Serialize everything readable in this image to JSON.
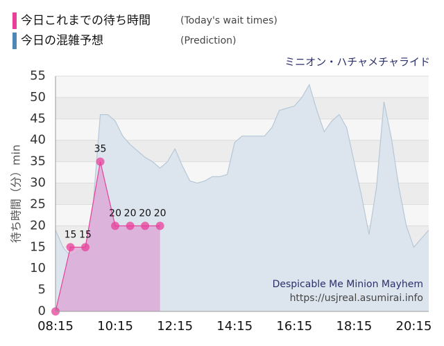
{
  "chart_data": {
    "type": "area",
    "attraction": "ミニオン・ハチャメチャライド",
    "attraction_en": "Despicable Me Minion Mayhem",
    "source": "https://usjreal.asumirai.info",
    "ylabel": "待ち時間（分）min",
    "xlim": [
      "08:15",
      "20:45"
    ],
    "xticks": [
      "08:15",
      "10:15",
      "12:15",
      "14:15",
      "16:15",
      "18:15",
      "20:15"
    ],
    "ylim": [
      0,
      55
    ],
    "yticks": [
      0,
      5,
      10,
      15,
      20,
      25,
      30,
      35,
      40,
      45,
      50,
      55
    ],
    "grid": true,
    "series": [
      {
        "name": "今日これまでの待ち時間",
        "legend_note": "(Today's wait times)",
        "color": "#e8409a",
        "fill": "#dcaad6",
        "x": [
          "08:15",
          "08:45",
          "09:15",
          "09:45",
          "10:15",
          "10:45",
          "11:15",
          "11:45"
        ],
        "values": [
          0,
          15,
          15,
          35,
          20,
          20,
          20,
          20
        ]
      },
      {
        "name": "今日の混雑予想",
        "legend_note": "(Prediction)",
        "color": "#4f86b4",
        "fill": "#dce5ee",
        "line": "#b6c7d6",
        "x": [
          "08:15",
          "08:30",
          "08:45",
          "09:00",
          "09:15",
          "09:30",
          "09:45",
          "10:00",
          "10:15",
          "10:30",
          "10:45",
          "11:00",
          "11:15",
          "11:30",
          "11:45",
          "12:00",
          "12:15",
          "12:30",
          "12:45",
          "13:00",
          "13:15",
          "13:30",
          "13:45",
          "14:00",
          "14:15",
          "14:30",
          "14:45",
          "15:00",
          "15:15",
          "15:30",
          "15:45",
          "16:00",
          "16:15",
          "16:30",
          "16:45",
          "17:00",
          "17:15",
          "17:30",
          "17:45",
          "18:00",
          "18:15",
          "18:30",
          "18:45",
          "19:00",
          "19:15",
          "19:30",
          "19:45",
          "20:00",
          "20:15",
          "20:30",
          "20:45"
        ],
        "values": [
          19,
          15,
          13,
          14,
          15,
          24,
          46,
          46,
          44.5,
          41,
          39,
          37.5,
          36,
          35,
          33.5,
          35,
          38,
          34,
          30.5,
          30,
          30.5,
          31.5,
          31.5,
          32,
          39.5,
          41,
          41,
          41,
          41,
          43,
          47,
          47.5,
          48,
          50,
          53,
          47,
          42,
          44.5,
          46,
          43,
          35,
          27,
          18,
          29,
          49,
          40.5,
          29,
          20,
          15,
          17,
          19
        ]
      }
    ]
  }
}
